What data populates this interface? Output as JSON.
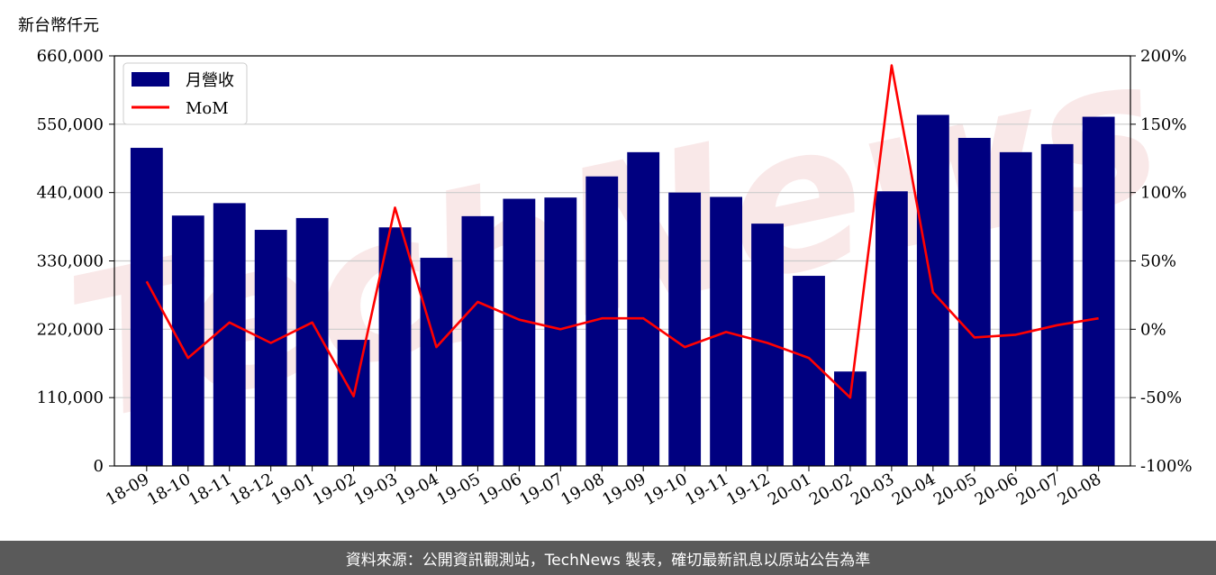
{
  "unit_label": "新台幣仟元",
  "watermark": "TechNews",
  "footer_text": "資料來源：公開資訊觀測站，TechNews 製表，確切最新訊息以原站公告為準",
  "colors": {
    "bar": "#000080",
    "line": "#ff0000",
    "grid": "#cccccc",
    "footer_bg": "#5a5a5a",
    "watermark": "#f5d6d6"
  },
  "chart_data": {
    "type": "bar",
    "categories": [
      "18-09",
      "18-10",
      "18-11",
      "18-12",
      "19-01",
      "19-02",
      "19-03",
      "19-04",
      "19-05",
      "19-06",
      "19-07",
      "19-08",
      "19-09",
      "19-10",
      "19-11",
      "19-12",
      "20-01",
      "20-02",
      "20-03",
      "20-04",
      "20-05",
      "20-06",
      "20-07",
      "20-08"
    ],
    "series": [
      {
        "name": "月營收",
        "type": "bar",
        "axis": "left",
        "values": [
          512000,
          403000,
          423000,
          380000,
          399000,
          203000,
          384000,
          335000,
          402000,
          430000,
          432000,
          466000,
          505000,
          440000,
          433000,
          390000,
          306000,
          152000,
          442000,
          565000,
          528000,
          505000,
          518000,
          562000
        ]
      },
      {
        "name": "MoM",
        "type": "line",
        "axis": "right",
        "values": [
          35,
          -21,
          5,
          -10,
          5,
          -49,
          89,
          -13,
          20,
          7,
          0,
          8,
          8,
          -13,
          -2,
          -10,
          -21,
          -50,
          193,
          27,
          -6,
          -4,
          3,
          8
        ]
      }
    ],
    "y_left": {
      "ylim": [
        0,
        660000
      ],
      "ticks": [
        "0",
        "110,000",
        "220,000",
        "330,000",
        "440,000",
        "550,000",
        "660,000"
      ],
      "tick_values": [
        0,
        110000,
        220000,
        330000,
        440000,
        550000,
        660000
      ]
    },
    "y_right": {
      "ylim": [
        -100,
        200
      ],
      "ticks": [
        "-100%",
        "-50%",
        "0%",
        "50%",
        "100%",
        "150%",
        "200%"
      ],
      "tick_values": [
        -100,
        -50,
        0,
        50,
        100,
        150,
        200
      ]
    },
    "grid": true,
    "legend_position": "top-left"
  }
}
